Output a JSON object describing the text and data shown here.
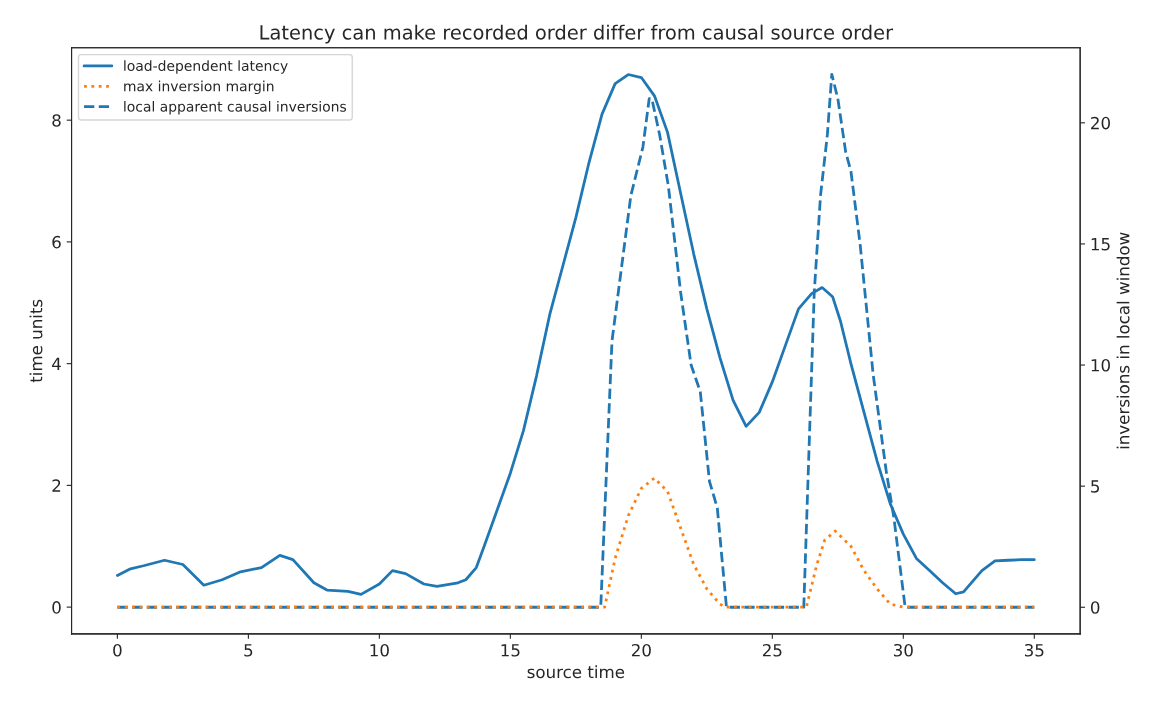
{
  "chart_data": {
    "type": "line",
    "title": "Latency can make recorded order differ from causal source order",
    "xlabel": "source time",
    "ylabel": "time units",
    "y2label": "inversions in local window",
    "xlim": [
      -1.75,
      36.75
    ],
    "xticks": [
      0,
      5,
      10,
      15,
      20,
      25,
      30,
      35
    ],
    "ylim": [
      -0.44,
      9.19
    ],
    "yticks": [
      0,
      2,
      4,
      6,
      8
    ],
    "y2lim": [
      -1.1,
      23.1
    ],
    "y2ticks": [
      0,
      5,
      10,
      15,
      20
    ],
    "legend": "top left",
    "grid": false,
    "series": [
      {
        "name": "load-dependent latency",
        "color": "#1f77b4",
        "line_style": "solid",
        "x": [
          0,
          0.5,
          1,
          1.8,
          2.5,
          3.3,
          4,
          4.7,
          5.5,
          6.2,
          6.7,
          7.5,
          8,
          8.8,
          9.3,
          10,
          10.5,
          11,
          11.7,
          12.2,
          13,
          13.3,
          13.7,
          14,
          14.5,
          15,
          15.5,
          16,
          16.5,
          17,
          17.5,
          18,
          18.5,
          19,
          19.5,
          20,
          20.5,
          21,
          21.5,
          22,
          22.5,
          23,
          23.5,
          24,
          24.5,
          25,
          25.5,
          26,
          26.5,
          26.9,
          27.3,
          27.6,
          28,
          28.5,
          29,
          29.5,
          30,
          30.5,
          31,
          31.5,
          32,
          32.3,
          33,
          33.5,
          34,
          34.5,
          35
        ],
        "values": [
          0.52,
          0.63,
          0.68,
          0.77,
          0.7,
          0.36,
          0.45,
          0.58,
          0.65,
          0.85,
          0.78,
          0.4,
          0.28,
          0.26,
          0.21,
          0.38,
          0.6,
          0.55,
          0.38,
          0.34,
          0.4,
          0.45,
          0.65,
          1.0,
          1.6,
          2.2,
          2.9,
          3.8,
          4.8,
          5.6,
          6.4,
          7.3,
          8.1,
          8.6,
          8.75,
          8.7,
          8.4,
          7.8,
          6.8,
          5.8,
          4.9,
          4.1,
          3.4,
          2.97,
          3.2,
          3.7,
          4.3,
          4.9,
          5.15,
          5.25,
          5.1,
          4.7,
          4.0,
          3.2,
          2.4,
          1.7,
          1.2,
          0.8,
          0.6,
          0.4,
          0.22,
          0.25,
          0.6,
          0.76,
          0.77,
          0.78,
          0.78
        ]
      },
      {
        "name": "max inversion margin",
        "color": "#ff7f0e",
        "line_style": "dotted",
        "x": [
          0,
          18.6,
          19,
          19.5,
          20,
          20.5,
          21,
          21.5,
          22,
          22.5,
          23,
          23.2,
          26.3,
          26.7,
          27,
          27.4,
          28,
          28.5,
          29,
          29.5,
          30,
          35
        ],
        "values": [
          0,
          0,
          0.8,
          1.5,
          1.95,
          2.12,
          1.9,
          1.3,
          0.7,
          0.3,
          0.05,
          0,
          0,
          0.7,
          1.1,
          1.25,
          1.0,
          0.6,
          0.3,
          0.05,
          0,
          0
        ]
      },
      {
        "name": "local apparent causal inversions",
        "color": "#1f77b4",
        "line_style": "dashed",
        "axis": "y2",
        "x": [
          0,
          18.45,
          18.88,
          19.6,
          20.06,
          20.3,
          20.4,
          20.7,
          21.03,
          21.5,
          21.9,
          22.25,
          22.6,
          22.9,
          23.25,
          26.2,
          26.6,
          26.84,
          27.1,
          27.27,
          27.5,
          27.8,
          28.0,
          28.35,
          28.85,
          29.35,
          29.64,
          30.07,
          35
        ],
        "values": [
          0,
          0,
          11,
          17,
          19,
          21,
          21,
          19.5,
          17.4,
          13,
          10,
          8.9,
          5.2,
          4.1,
          0,
          0,
          13,
          17,
          19.5,
          22,
          21,
          18.8,
          18,
          15,
          9.6,
          5.6,
          3.7,
          0,
          0
        ]
      }
    ]
  }
}
